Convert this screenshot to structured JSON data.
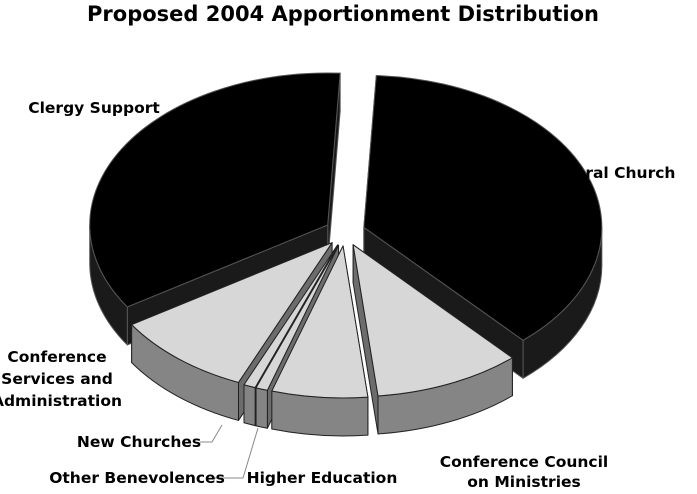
{
  "chart_data": {
    "type": "pie",
    "title": "Proposed 2004 Apportionment Distribution",
    "three_d": true,
    "exploded": true,
    "legend": "none",
    "slices": [
      {
        "label": "General Church",
        "value": 37.5,
        "color": "#000000"
      },
      {
        "label": "Conference Council on Ministries",
        "value": 10.0,
        "color": "#d7d7d7"
      },
      {
        "label": "Higher Education",
        "value": 6.5,
        "color": "#d7d7d7"
      },
      {
        "label": "Other Benevolences",
        "value": 0.8,
        "color": "#d7d7d7"
      },
      {
        "label": "New Churches",
        "value": 0.8,
        "color": "#d7d7d7"
      },
      {
        "label": "Conference Services and Administration",
        "value": 9.5,
        "color": "#d7d7d7"
      },
      {
        "label": "Clergy Support",
        "value": 34.9,
        "color": "#000000"
      }
    ],
    "label_lines": {
      "general_church": [
        "General Church"
      ],
      "conference_council": [
        "Conference Council",
        "on Ministries"
      ],
      "higher_education": [
        "Higher Education"
      ],
      "other_benevolences": [
        "Other Benevolences"
      ],
      "new_churches": [
        "New Churches"
      ],
      "conference_services": [
        "Conference",
        "Services and",
        "Administration"
      ],
      "clergy_support": [
        "Clergy Support"
      ]
    }
  }
}
